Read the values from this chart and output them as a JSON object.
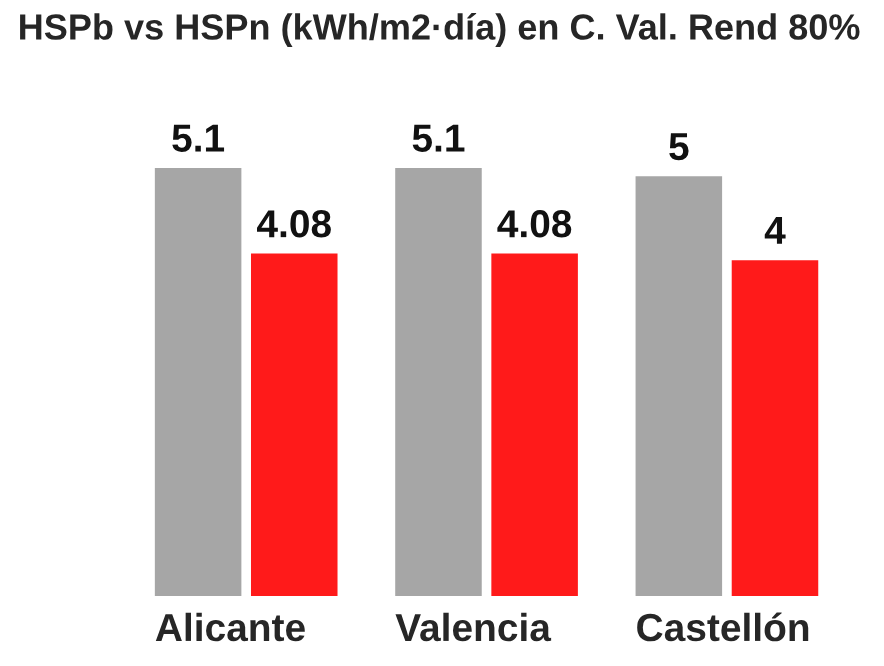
{
  "chart_data": {
    "type": "bar",
    "title": "HSPb vs HSPn (kWh/m2·día) en C. Val. Rend 80%",
    "categories": [
      "Alicante",
      "Valencia",
      "Castellón"
    ],
    "series": [
      {
        "color": "#a6a6a6",
        "values": [
          5.1,
          5.1,
          5
        ]
      },
      {
        "color": "#ff1a1a",
        "values": [
          4.08,
          4.08,
          4
        ]
      }
    ],
    "data_labels": true,
    "grid": false,
    "legend": false
  }
}
